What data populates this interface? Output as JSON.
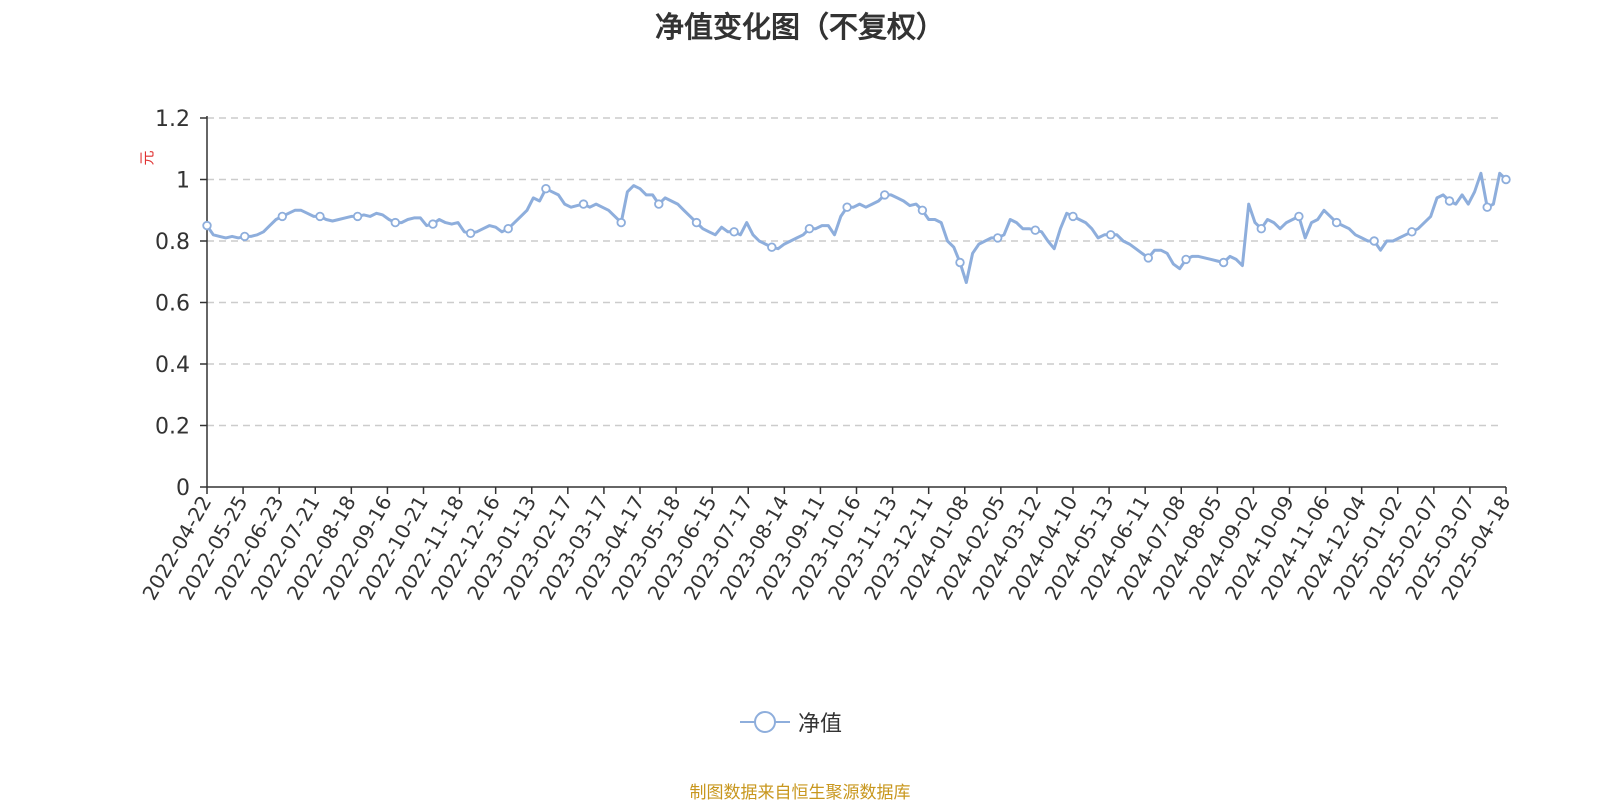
{
  "chart_data": {
    "type": "line",
    "title": "净值变化图（不复权）",
    "ylabel": "元",
    "ylim": [
      0,
      1.2
    ],
    "yticks": [
      0,
      0.2,
      0.4,
      0.6,
      0.8,
      1,
      1.2
    ],
    "ytick_labels": [
      "0",
      "0.2",
      "0.4",
      "0.6",
      "0.8",
      "1",
      "1.2"
    ],
    "grid": true,
    "x_ticks": [
      "2022-04-22",
      "2022-05-25",
      "2022-06-23",
      "2022-07-21",
      "2022-08-18",
      "2022-09-16",
      "2022-10-21",
      "2022-11-18",
      "2022-12-16",
      "2023-01-13",
      "2023-02-17",
      "2023-03-17",
      "2023-04-17",
      "2023-05-18",
      "2023-06-15",
      "2023-07-17",
      "2023-08-14",
      "2023-09-11",
      "2023-10-16",
      "2023-11-13",
      "2023-12-11",
      "2024-01-08",
      "2024-02-05",
      "2024-03-12",
      "2024-04-10",
      "2024-05-13",
      "2024-06-11",
      "2024-07-08",
      "2024-08-05",
      "2024-09-02",
      "2024-10-09",
      "2024-11-06",
      "2024-12-04",
      "2025-01-02",
      "2025-02-07",
      "2025-03-07",
      "2025-04-18"
    ],
    "legend_position": "bottom-center",
    "series": [
      {
        "name": "净值",
        "color": "#8eaedc",
        "values": [
          0.85,
          0.82,
          0.815,
          0.81,
          0.815,
          0.81,
          0.815,
          0.815,
          0.82,
          0.83,
          0.85,
          0.87,
          0.88,
          0.89,
          0.9,
          0.9,
          0.89,
          0.88,
          0.88,
          0.87,
          0.865,
          0.87,
          0.875,
          0.88,
          0.88,
          0.885,
          0.88,
          0.89,
          0.885,
          0.87,
          0.86,
          0.86,
          0.87,
          0.875,
          0.875,
          0.85,
          0.855,
          0.87,
          0.86,
          0.855,
          0.86,
          0.83,
          0.825,
          0.83,
          0.84,
          0.85,
          0.845,
          0.83,
          0.84,
          0.86,
          0.88,
          0.9,
          0.94,
          0.93,
          0.97,
          0.96,
          0.95,
          0.92,
          0.91,
          0.915,
          0.92,
          0.91,
          0.92,
          0.91,
          0.9,
          0.88,
          0.86,
          0.96,
          0.98,
          0.97,
          0.95,
          0.95,
          0.92,
          0.94,
          0.93,
          0.92,
          0.9,
          0.88,
          0.86,
          0.84,
          0.83,
          0.82,
          0.845,
          0.83,
          0.83,
          0.82,
          0.86,
          0.82,
          0.8,
          0.79,
          0.78,
          0.775,
          0.79,
          0.8,
          0.81,
          0.82,
          0.84,
          0.84,
          0.85,
          0.85,
          0.82,
          0.88,
          0.91,
          0.91,
          0.92,
          0.91,
          0.92,
          0.93,
          0.95,
          0.95,
          0.94,
          0.93,
          0.915,
          0.92,
          0.9,
          0.87,
          0.87,
          0.86,
          0.8,
          0.78,
          0.73,
          0.665,
          0.76,
          0.79,
          0.8,
          0.81,
          0.81,
          0.82,
          0.87,
          0.86,
          0.84,
          0.84,
          0.835,
          0.83,
          0.8,
          0.775,
          0.84,
          0.89,
          0.88,
          0.87,
          0.86,
          0.84,
          0.81,
          0.82,
          0.82,
          0.82,
          0.8,
          0.79,
          0.775,
          0.76,
          0.745,
          0.77,
          0.77,
          0.76,
          0.725,
          0.71,
          0.74,
          0.75,
          0.75,
          0.745,
          0.74,
          0.735,
          0.73,
          0.75,
          0.74,
          0.72,
          0.92,
          0.86,
          0.84,
          0.87,
          0.86,
          0.84,
          0.86,
          0.87,
          0.88,
          0.81,
          0.86,
          0.87,
          0.9,
          0.88,
          0.86,
          0.85,
          0.84,
          0.82,
          0.81,
          0.8,
          0.8,
          0.77,
          0.8,
          0.8,
          0.81,
          0.82,
          0.83,
          0.84,
          0.86,
          0.88,
          0.94,
          0.95,
          0.93,
          0.92,
          0.95,
          0.92,
          0.96,
          1.02,
          0.91,
          0.92,
          1.02,
          1.0
        ]
      }
    ]
  },
  "legend": {
    "label": "净值"
  },
  "source_note": "制图数据来自恒生聚源数据库"
}
